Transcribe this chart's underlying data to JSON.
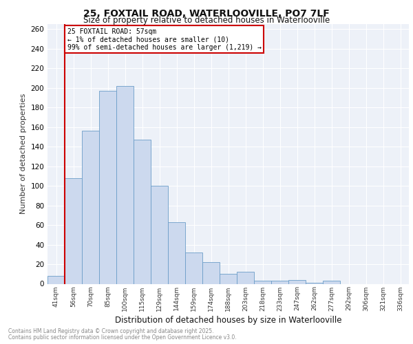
{
  "title1": "25, FOXTAIL ROAD, WATERLOOVILLE, PO7 7LF",
  "title2": "Size of property relative to detached houses in Waterlooville",
  "xlabel": "Distribution of detached houses by size in Waterlooville",
  "ylabel": "Number of detached properties",
  "categories": [
    "41sqm",
    "56sqm",
    "70sqm",
    "85sqm",
    "100sqm",
    "115sqm",
    "129sqm",
    "144sqm",
    "159sqm",
    "174sqm",
    "188sqm",
    "203sqm",
    "218sqm",
    "233sqm",
    "247sqm",
    "262sqm",
    "277sqm",
    "292sqm",
    "306sqm",
    "321sqm",
    "336sqm"
  ],
  "values": [
    8,
    108,
    156,
    197,
    202,
    147,
    100,
    63,
    32,
    22,
    10,
    12,
    3,
    3,
    4,
    1,
    3,
    0,
    0,
    0,
    0
  ],
  "bar_color": "#ccd9ee",
  "bar_edge_color": "#6b9dc8",
  "vline_color": "#cc0000",
  "vline_x_index": 1,
  "annotation_line1": "25 FOXTAIL ROAD: 57sqm",
  "annotation_line2": "← 1% of detached houses are smaller (10)",
  "annotation_line3": "99% of semi-detached houses are larger (1,219) →",
  "annotation_box_edge_color": "#cc0000",
  "annotation_box_bg": "#ffffff",
  "footer1": "Contains HM Land Registry data © Crown copyright and database right 2025.",
  "footer2": "Contains public sector information licensed under the Open Government Licence v3.0.",
  "bg_color": "#ffffff",
  "plot_bg_color": "#edf1f8",
  "grid_color": "#ffffff",
  "ylim": [
    0,
    265
  ],
  "yticks": [
    0,
    20,
    40,
    60,
    80,
    100,
    120,
    140,
    160,
    180,
    200,
    220,
    240,
    260
  ]
}
